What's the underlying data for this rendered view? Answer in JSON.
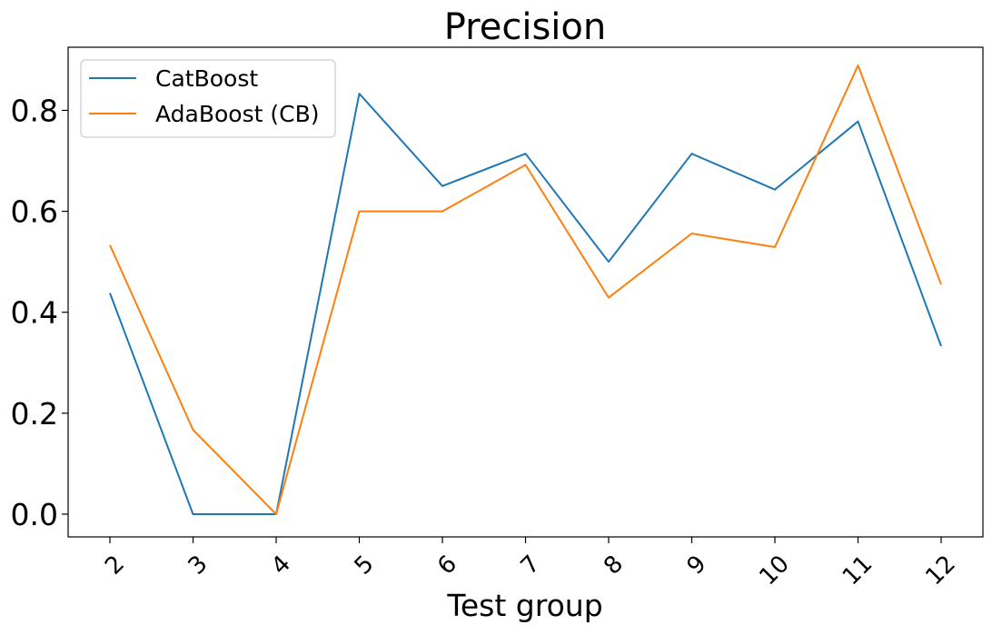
{
  "chart_data": {
    "type": "line",
    "title": "Precision",
    "xlabel": "Test group",
    "ylabel": "",
    "categories": [
      "2",
      "3",
      "4",
      "5",
      "6",
      "7",
      "8",
      "9",
      "10",
      "11",
      "12"
    ],
    "yticks": [
      "0.0",
      "0.2",
      "0.4",
      "0.6",
      "0.8"
    ],
    "ylim": [
      -0.045,
      0.925
    ],
    "grid": false,
    "legend_position": "top-left",
    "series": [
      {
        "name": "CatBoost",
        "color": "#1f77b4",
        "values": [
          0.438,
          0.0,
          0.0,
          0.833,
          0.65,
          0.714,
          0.5,
          0.714,
          0.643,
          0.778,
          0.333
        ]
      },
      {
        "name": "AdaBoost (CB)",
        "color": "#ff7f0e",
        "values": [
          0.533,
          0.167,
          0.0,
          0.6,
          0.6,
          0.692,
          0.429,
          0.556,
          0.529,
          0.889,
          0.455
        ]
      }
    ]
  }
}
